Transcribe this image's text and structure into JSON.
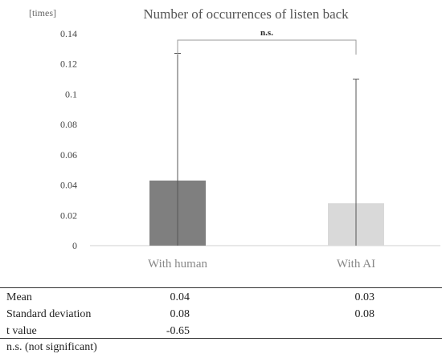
{
  "chart_data": {
    "type": "bar",
    "title": "Number of occurrences of listen back",
    "unit_label": "[times]",
    "categories": [
      "With human",
      "With AI"
    ],
    "values": [
      0.043,
      0.028
    ],
    "error_upper": [
      0.127,
      0.11
    ],
    "ylim": [
      0,
      0.14
    ],
    "yticks": [
      {
        "value": 0,
        "label": "0"
      },
      {
        "value": 0.02,
        "label": "0.02"
      },
      {
        "value": 0.04,
        "label": "0.04"
      },
      {
        "value": 0.06,
        "label": "0.06"
      },
      {
        "value": 0.08,
        "label": "0.08"
      },
      {
        "value": 0.1,
        "label": "0.1"
      },
      {
        "value": 0.12,
        "label": "0.12"
      },
      {
        "value": 0.14,
        "label": "0.14"
      }
    ],
    "bar_colors": [
      "#7f7f7f",
      "#d9d9d9"
    ],
    "grid": false,
    "significance": "n.s."
  },
  "stats_table": {
    "rows": [
      {
        "label": "Mean",
        "with_human": "0.04",
        "with_ai": "0.03"
      },
      {
        "label": "Standard deviation",
        "with_human": "0.08",
        "with_ai": "0.08"
      },
      {
        "label": "t value",
        "with_human": "-0.65",
        "with_ai": ""
      }
    ],
    "note": "n.s. (not significant)"
  }
}
